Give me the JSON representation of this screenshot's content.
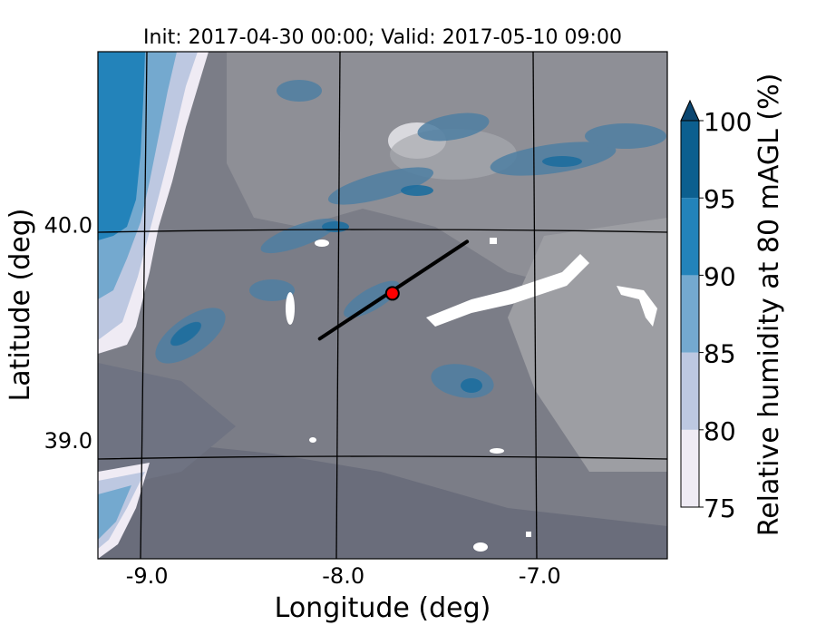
{
  "chart_data": {
    "type": "heatmap",
    "title": "Init: 2017-04-30 00:00; Valid: 2017-05-10 09:00",
    "xlabel": "Longitude (deg)",
    "ylabel": "Latitude (deg)",
    "x_ticks": [
      {
        "value": -9.0,
        "label": "-9.0"
      },
      {
        "value": -8.0,
        "label": "-8.0"
      },
      {
        "value": -7.0,
        "label": "-7.0"
      }
    ],
    "y_ticks": [
      {
        "value": 40.0,
        "label": "40.0"
      },
      {
        "value": 39.0,
        "label": "39.0"
      }
    ],
    "xlim": [
      -9.25,
      -6.35
    ],
    "ylim": [
      38.45,
      40.8
    ],
    "colorbar": {
      "label": "Relative humidity at 80 mAGL (%)",
      "levels": [
        75,
        80,
        85,
        90,
        95,
        100
      ],
      "labels": [
        "75",
        "80",
        "85",
        "90",
        "95",
        "100"
      ],
      "colors": [
        "#efebf4",
        "#bdc8e1",
        "#74a9cf",
        "#2383ba",
        "#0c5f8f"
      ],
      "extend_color": "#0b4670",
      "extend": "max"
    },
    "land_mask_color": "#808080",
    "transect": {
      "start": [
        -8.12,
        39.47
      ],
      "end": [
        -7.37,
        39.92
      ]
    },
    "marker": {
      "lon": -7.75,
      "lat": 39.68,
      "color": "#ff0000"
    }
  }
}
